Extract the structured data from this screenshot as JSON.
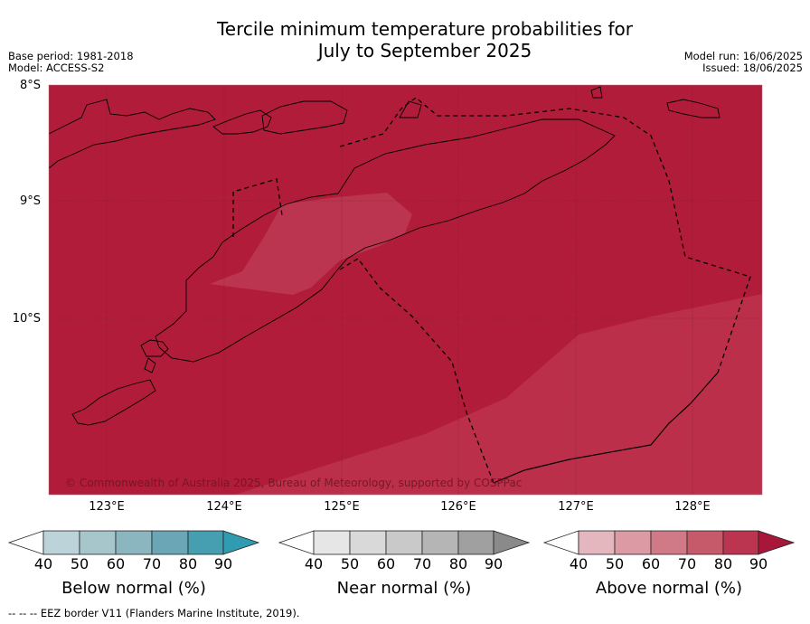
{
  "title_line1": "Tercile minimum temperature probabilities for",
  "title_line2": "July to September 2025",
  "meta_left": {
    "base_period": "Base period: 1981-2018",
    "model": "Model: ACCESS-S2"
  },
  "meta_right": {
    "model_run": "Model run: 16/06/2025",
    "issued": "Issued: 18/06/2025"
  },
  "map": {
    "lat_labels": [
      "8°S",
      "9°S",
      "10°S"
    ],
    "lon_labels": [
      "123°E",
      "124°E",
      "125°E",
      "126°E",
      "127°E",
      "128°E"
    ],
    "copyright": "© Commonwealth of Australia 2025, Bureau of Meteorology, supported by COSPPac",
    "colors": {
      "above_90": "#b11c3a",
      "above_80": "#bb2f4b"
    }
  },
  "legends": [
    {
      "title": "Below normal (%)",
      "ticks": [
        "40",
        "50",
        "60",
        "70",
        "80",
        "90"
      ],
      "colors": [
        "#ffffff",
        "#bdd3da",
        "#a6c6cc",
        "#8bb6c0",
        "#6aa6b5",
        "#459fb0",
        "#2f9cb1"
      ]
    },
    {
      "title": "Near normal (%)",
      "ticks": [
        "40",
        "50",
        "60",
        "70",
        "80",
        "90"
      ],
      "colors": [
        "#ffffff",
        "#e6e6e6",
        "#d9d9d9",
        "#c9c9c9",
        "#b5b5b5",
        "#a0a0a0",
        "#8a8a8a"
      ]
    },
    {
      "title": "Above normal (%)",
      "ticks": [
        "40",
        "50",
        "60",
        "70",
        "80",
        "90"
      ],
      "colors": [
        "#ffffff",
        "#e4b7bf",
        "#db9aa4",
        "#cf7a86",
        "#c65a6b",
        "#bb3550",
        "#a8173a"
      ]
    }
  ],
  "footnote": "--  --  -- EEZ border V11 (Flanders Marine Institute, 2019)."
}
